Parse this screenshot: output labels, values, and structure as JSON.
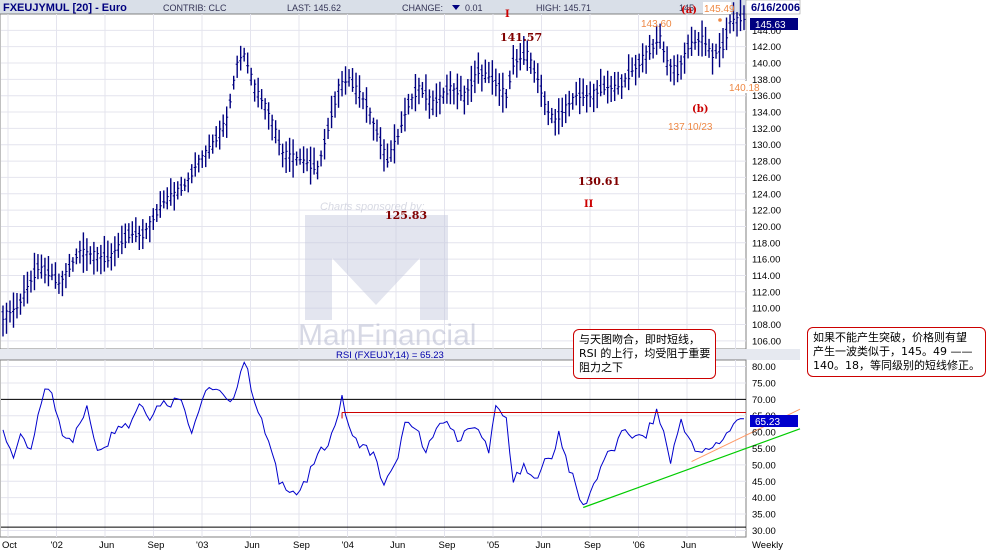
{
  "header": {
    "symbol": "FXEUJYMUL [20] - Euro",
    "contrib": "CONTRIB: CLC",
    "last": "LAST: 145.62",
    "change_label": "CHANGE:",
    "change_value": "0.01",
    "high": "HIGH: 145.71",
    "date": "6/16/2006"
  },
  "watermark": {
    "top_text": "Charts sponsored by:",
    "brand": "ManFinancial"
  },
  "annotations": {
    "wave_I": "I",
    "wave_II": "II",
    "wave_a": "(a)",
    "wave_b": "(b)",
    "v_141_57": "141.57",
    "v_125_83": "125.83",
    "v_130_61": "130.61",
    "v_143_60": "143.60",
    "v_145_49": "145.49",
    "v_140_18": "140.18",
    "v_137_10_23": "137.10/23",
    "price_tag": "145.63",
    "rsi_tag": "65.23",
    "partial_hi": "145"
  },
  "notes": {
    "note1": "与天图吻合，即时短线，\nRSI 的上行，均受阻于重要\n阻力之下",
    "note2": "如果不能产生突破，价格则有望\n产生一波类似于，145。49 ——\n140。18，等同级别的短线修正。"
  },
  "colors": {
    "price": "#000080",
    "rsi": "#0000cc",
    "resistance": "#cc0000",
    "support": "#00cc00",
    "secondary": "#ff9966",
    "annotation_dark": "#800000",
    "annotation_orange": "#ee8844"
  },
  "chart_data": [
    {
      "type": "candlestick",
      "title": "FXEUJYMUL [20] - Euro",
      "interval": "Weekly",
      "x_tick_labels": [
        "Oct",
        "'02",
        "Jun",
        "Sep",
        "'03",
        "Jun",
        "Sep",
        "'04",
        "Jun",
        "Sep",
        "'05",
        "Jun",
        "Sep",
        "'06",
        "Jun",
        "Weekly"
      ],
      "y_tick_labels": [
        "106.00",
        "108.00",
        "110.00",
        "112.00",
        "114.00",
        "116.00",
        "118.00",
        "120.00",
        "122.00",
        "124.00",
        "126.00",
        "128.00",
        "130.00",
        "132.00",
        "134.00",
        "136.00",
        "138.00",
        "140.00",
        "142.00",
        "144.00"
      ],
      "ylim": [
        105,
        146
      ],
      "last_value": 145.63,
      "labeled_points": [
        {
          "label": "I",
          "value": 141.57
        },
        {
          "label": "II",
          "value": 130.61
        },
        {
          "label": "(a)",
          "value": 145.49
        },
        {
          "label": "(b)",
          "value": 140.18
        },
        {
          "value": 125.83
        },
        {
          "value": 143.6
        },
        {
          "value": "137.10/23"
        }
      ],
      "anchors": [
        [
          0,
          109
        ],
        [
          4,
          110
        ],
        [
          10,
          115
        ],
        [
          14,
          114
        ],
        [
          16,
          113
        ],
        [
          22,
          117
        ],
        [
          30,
          116
        ],
        [
          36,
          119
        ],
        [
          40,
          119
        ],
        [
          46,
          123
        ],
        [
          52,
          125
        ],
        [
          56,
          128
        ],
        [
          60,
          130
        ],
        [
          64,
          133
        ],
        [
          67,
          140
        ],
        [
          69,
          141
        ],
        [
          72,
          137
        ],
        [
          76,
          134
        ],
        [
          80,
          129
        ],
        [
          86,
          128
        ],
        [
          90,
          127
        ],
        [
          93,
          132
        ],
        [
          96,
          137
        ],
        [
          99,
          138
        ],
        [
          104,
          135
        ],
        [
          110,
          128
        ],
        [
          113,
          131
        ],
        [
          116,
          135
        ],
        [
          119,
          137
        ],
        [
          123,
          135
        ],
        [
          128,
          137
        ],
        [
          132,
          136
        ],
        [
          136,
          139
        ],
        [
          140,
          138
        ],
        [
          144,
          136
        ],
        [
          146,
          140
        ],
        [
          150,
          141
        ],
        [
          153,
          138
        ],
        [
          156,
          134
        ],
        [
          158,
          133
        ],
        [
          160,
          134
        ],
        [
          164,
          136
        ],
        [
          168,
          136
        ],
        [
          172,
          137
        ],
        [
          176,
          137
        ],
        [
          180,
          139
        ],
        [
          184,
          141
        ],
        [
          188,
          143
        ],
        [
          190,
          140
        ],
        [
          193,
          139
        ],
        [
          196,
          142
        ],
        [
          200,
          143
        ],
        [
          203,
          141
        ],
        [
          206,
          142
        ],
        [
          208,
          145
        ],
        [
          212,
          145.6
        ]
      ]
    },
    {
      "type": "line",
      "title": "RSI (FXEUJY,14) = 65.23",
      "y_tick_labels": [
        "30.00",
        "35.00",
        "40.00",
        "45.00",
        "50.00",
        "55.00",
        "60.00",
        "65.00",
        "70.00",
        "75.00",
        "80.00"
      ],
      "ylim": [
        28,
        82
      ],
      "reference_lines": [
        70,
        31
      ],
      "resistance_level": 66,
      "last_value": 65.23,
      "anchors": [
        [
          0,
          60
        ],
        [
          3,
          53
        ],
        [
          5,
          58
        ],
        [
          8,
          54
        ],
        [
          12,
          74
        ],
        [
          14,
          71
        ],
        [
          17,
          60
        ],
        [
          20,
          58
        ],
        [
          24,
          67
        ],
        [
          27,
          55
        ],
        [
          30,
          57
        ],
        [
          33,
          63
        ],
        [
          36,
          62
        ],
        [
          39,
          69
        ],
        [
          42,
          65
        ],
        [
          45,
          69
        ],
        [
          48,
          69
        ],
        [
          51,
          71
        ],
        [
          54,
          60
        ],
        [
          57,
          70
        ],
        [
          60,
          74
        ],
        [
          62,
          72
        ],
        [
          65,
          68
        ],
        [
          67,
          75
        ],
        [
          69,
          82
        ],
        [
          71,
          74
        ],
        [
          73,
          66
        ],
        [
          76,
          57
        ],
        [
          79,
          45
        ],
        [
          82,
          43
        ],
        [
          84,
          41
        ],
        [
          87,
          45
        ],
        [
          89,
          51
        ],
        [
          91,
          54
        ],
        [
          94,
          59
        ],
        [
          97,
          70
        ],
        [
          100,
          58
        ],
        [
          103,
          56
        ],
        [
          106,
          53
        ],
        [
          109,
          44
        ],
        [
          112,
          49
        ],
        [
          115,
          62
        ],
        [
          118,
          61
        ],
        [
          121,
          55
        ],
        [
          124,
          60
        ],
        [
          127,
          64
        ],
        [
          130,
          57
        ],
        [
          133,
          62
        ],
        [
          136,
          60
        ],
        [
          139,
          55
        ],
        [
          141,
          67
        ],
        [
          144,
          64
        ],
        [
          146,
          45
        ],
        [
          149,
          49
        ],
        [
          152,
          45
        ],
        [
          154,
          50
        ],
        [
          157,
          52
        ],
        [
          159,
          60
        ],
        [
          162,
          49
        ],
        [
          165,
          40
        ],
        [
          166,
          37
        ],
        [
          169,
          44
        ],
        [
          172,
          52
        ],
        [
          175,
          55
        ],
        [
          178,
          61
        ],
        [
          181,
          58
        ],
        [
          184,
          59
        ],
        [
          187,
          66
        ],
        [
          189,
          60
        ],
        [
          191,
          51
        ],
        [
          194,
          64
        ],
        [
          197,
          56
        ],
        [
          199,
          53
        ],
        [
          202,
          55
        ],
        [
          206,
          58
        ],
        [
          209,
          62
        ],
        [
          212,
          65.23
        ]
      ]
    }
  ]
}
